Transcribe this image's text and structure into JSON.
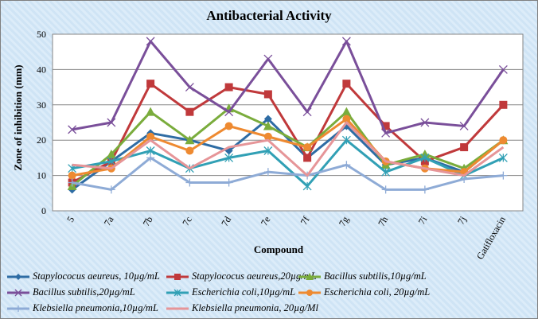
{
  "chart_data": {
    "type": "line",
    "title": "Antibacterial Activity",
    "xlabel": "Compound",
    "ylabel": "Zone of inhibition  (mm)",
    "ylim": [
      0,
      50
    ],
    "yticks": [
      0,
      10,
      20,
      30,
      40,
      50
    ],
    "grid": true,
    "legend_position": "bottom",
    "categories": [
      "5",
      "7a",
      "7b",
      "7c",
      "7d",
      "7e",
      "7f",
      "7g",
      "7h",
      "7i",
      "7j",
      "Gatifloxacin"
    ],
    "series": [
      {
        "name": "Stapylococus aeureus, 10µg/mL",
        "color": "#2e6ca4",
        "marker": "diamond",
        "values": [
          6,
          14,
          22,
          20,
          17,
          26,
          15,
          24,
          13,
          15,
          11,
          20
        ]
      },
      {
        "name": "Stapylococus aeureus,20µg/mL",
        "color": "#c0393b",
        "marker": "square",
        "values": [
          8,
          14,
          36,
          28,
          35,
          33,
          15,
          36,
          24,
          14,
          18,
          30
        ]
      },
      {
        "name": "Bacillus subtilis,10µg/mL",
        "color": "#7aac3c",
        "marker": "triangle",
        "values": [
          7,
          16,
          28,
          20,
          29,
          24,
          18,
          28,
          13,
          16,
          12,
          20
        ]
      },
      {
        "name": "Bacillus subtilis,20µg/mL",
        "color": "#7a4f9a",
        "marker": "x",
        "values": [
          23,
          25,
          48,
          35,
          28,
          43,
          28,
          48,
          22,
          25,
          24,
          40
        ]
      },
      {
        "name": "Escherichia coli,10µg/mL",
        "color": "#31a0b5",
        "marker": "star",
        "values": [
          12,
          14,
          17,
          12,
          15,
          17,
          7,
          20,
          11,
          15,
          10,
          15
        ]
      },
      {
        "name": "Escherichia coli, 20µg/mL",
        "color": "#ee8a31",
        "marker": "circle",
        "values": [
          10,
          12,
          21,
          17,
          24,
          21,
          18,
          26,
          14,
          12,
          11,
          20
        ]
      },
      {
        "name": "Klebsiella pneumonia,10µg/mL",
        "color": "#8eabd6",
        "marker": "plus",
        "values": [
          8,
          6,
          15,
          8,
          8,
          11,
          10,
          13,
          6,
          6,
          9,
          10
        ]
      },
      {
        "name": "Klebsiella pneumonia, 20µg/Ml",
        "color": "#e69598",
        "marker": "none",
        "values": [
          13,
          12,
          20,
          12,
          18,
          20,
          10,
          25,
          14,
          12,
          10,
          18
        ]
      }
    ]
  }
}
